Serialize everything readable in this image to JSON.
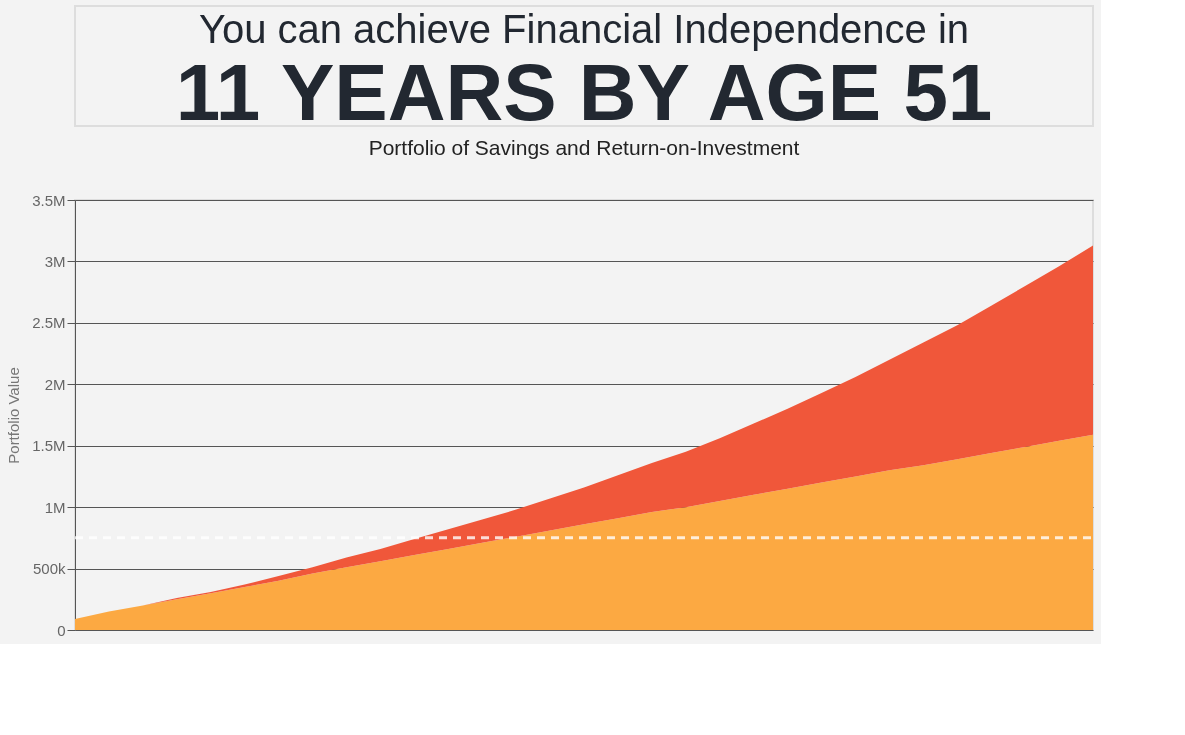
{
  "chart_data": {
    "type": "area",
    "title": "Portfolio of Savings and Return-on-Investment",
    "annotations": [
      "You can achieve Financial Independence in",
      "11 YEARS BY AGE 51"
    ],
    "ylabel": "Portfolio Value",
    "stacked": true,
    "grid": "y",
    "tick_labels": "y",
    "categories": [
      null,
      null,
      null,
      null,
      null,
      null,
      null,
      null,
      null,
      null,
      null,
      null,
      null,
      null,
      null,
      null,
      null,
      null,
      null,
      null,
      null,
      null,
      null,
      null,
      null,
      null,
      null,
      null,
      null,
      null,
      null
    ],
    "ylim": [
      0,
      3500000
    ],
    "yticks": [
      0,
      {
        "value": 500000,
        "label": "500k"
      },
      {
        "value": 1000000,
        "label": "1M"
      },
      {
        "value": 1500000,
        "label": "1.5M"
      },
      {
        "value": 2000000,
        "label": "2M"
      },
      {
        "value": 2500000,
        "label": "2.5M"
      },
      {
        "value": 3000000,
        "label": "3M"
      },
      {
        "value": 3500000,
        "label": "3.5M"
      }
    ],
    "series": [
      {
        "color": "#fca942",
        "values": [
          90000,
          150000,
          200000,
          250000,
          300000,
          350000,
          400000,
          460000,
          510000,
          560000,
          610000,
          660000,
          710000,
          760000,
          810000,
          860000,
          910000,
          960000,
          1000000,
          1050000,
          1100000,
          1150000,
          1200000,
          1250000,
          1300000,
          1340000,
          1390000,
          1440000,
          1490000,
          1540000,
          1590000
        ]
      },
      {
        "color": "#f0573a",
        "values": [
          0,
          0,
          0,
          10000,
          10000,
          20000,
          40000,
          50000,
          80000,
          100000,
          130000,
          160000,
          190000,
          220000,
          260000,
          300000,
          350000,
          400000,
          450000,
          510000,
          580000,
          650000,
          730000,
          810000,
          900000,
          1000000,
          1090000,
          1200000,
          1310000,
          1420000,
          1540000
        ]
      }
    ],
    "ref_lines": [
      {
        "axis": "y",
        "value": 750000,
        "color": "#ffffff",
        "line_style": "dashed"
      }
    ]
  }
}
